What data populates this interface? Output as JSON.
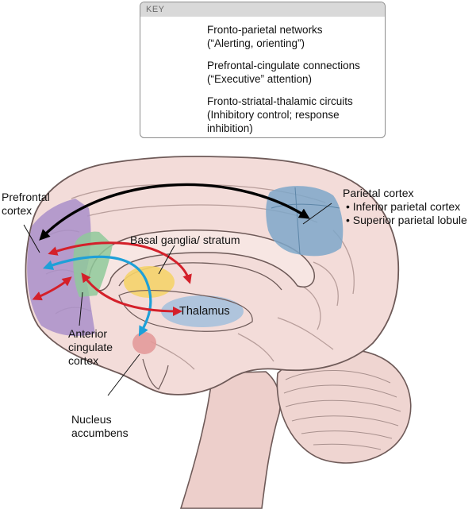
{
  "key": {
    "title": "KEY",
    "items": [
      {
        "line1": "Fronto-parietal networks",
        "line2": "(“Alerting, orienting”)",
        "line3": "",
        "color": "#000000"
      },
      {
        "line1": "Prefrontal-cingulate connections",
        "line2": "(“Executive” attention)",
        "line3": "",
        "color": "#1ea0d8"
      },
      {
        "line1": "Fronto-striatal-thalamic circuits",
        "line2": "(Inhibitory control; response",
        "line3": "inhibition)",
        "color": "#d4202a"
      }
    ]
  },
  "labels": {
    "prefrontal": {
      "line1": "Prefrontal",
      "line2": "cortex"
    },
    "parietal": {
      "line1": "Parietal cortex",
      "item1": "• Inferior parietal cortex",
      "item2": "• Superior parietal lobule"
    },
    "basal_ganglia": "Basal ganglia/ stratum",
    "thalamus": "Thalamus",
    "anterior_cingulate": {
      "line1": "Anterior",
      "line2": "cingulate",
      "line3": "cortex"
    },
    "nucleus_accumbens": {
      "line1": "Nucleus",
      "line2": "accumbens"
    }
  },
  "colors": {
    "brain": "#f3dcd9",
    "brain_outline": "#6e5a58",
    "prefrontal_region": "#a98fc9",
    "anterior_cingulate_region": "#8fc99a",
    "parietal_region": "#7ea7c9",
    "basal_ganglia_region": "#f5d36a",
    "thalamus_region": "#a7c1db",
    "nucleus_accumbens_region": "#e39a9a"
  }
}
